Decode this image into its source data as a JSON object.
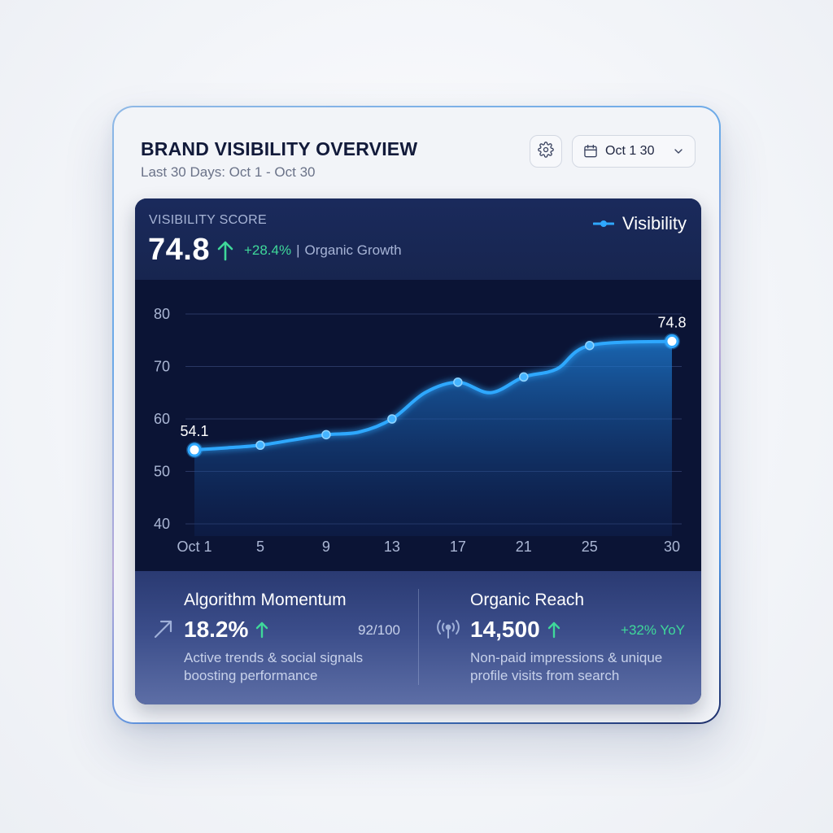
{
  "header": {
    "title": "BRAND VISIBILITY OVERVIEW",
    "subtitle": "Last 30 Days: Oct 1 - Oct 30",
    "settings_icon": "gear-icon",
    "date_picker": {
      "label": "Oct 1 30",
      "icon": "calendar-icon",
      "chevron": "chevron-down-icon"
    }
  },
  "score": {
    "label": "VISIBILITY SCORE",
    "value": "74.8",
    "change": "+28.4%",
    "separator": "|",
    "note": "Organic Growth"
  },
  "legend": {
    "label": "Visibility"
  },
  "chart_data": {
    "type": "line",
    "title": "",
    "xlabel": "",
    "ylabel": "",
    "x_ticks": [
      "Oct 1",
      "5",
      "9",
      "13",
      "17",
      "21",
      "25",
      "30"
    ],
    "y_ticks": [
      "40",
      "50",
      "60",
      "70",
      "80"
    ],
    "ylim": [
      40,
      80
    ],
    "xlim": [
      1,
      30
    ],
    "grid": true,
    "legend_position": "top-right",
    "series": [
      {
        "name": "Visibility",
        "color": "#2fa8ff",
        "x": [
          1,
          3,
          5,
          7,
          9,
          11,
          13,
          15,
          17,
          19,
          21,
          23,
          25,
          30
        ],
        "y": [
          54.1,
          54.5,
          55,
          56,
          57,
          57.5,
          60,
          65,
          67,
          65,
          68,
          69.5,
          74,
          74.8
        ],
        "markers_at": [
          1,
          5,
          9,
          13,
          17,
          21,
          25,
          30
        ]
      }
    ],
    "annotations": [
      {
        "x": 1,
        "y": 54.1,
        "text": "54.1"
      },
      {
        "x": 30,
        "y": 74.8,
        "text": "74.8"
      }
    ]
  },
  "stats": [
    {
      "title": "Algorithm Momentum",
      "value": "18.2%",
      "aside": "92/100",
      "description": "Active trends & social signals boosting performance",
      "icon": "trend-arrow-icon"
    },
    {
      "title": "Organic Reach",
      "value": "14,500",
      "aside": "+32% YoY",
      "description": "Non-paid impressions & unique profile visits from search",
      "icon": "broadcast-icon"
    }
  ],
  "colors": {
    "accent": "#2fa8ff",
    "positive": "#3fd89a",
    "panel": "#0c1638"
  }
}
